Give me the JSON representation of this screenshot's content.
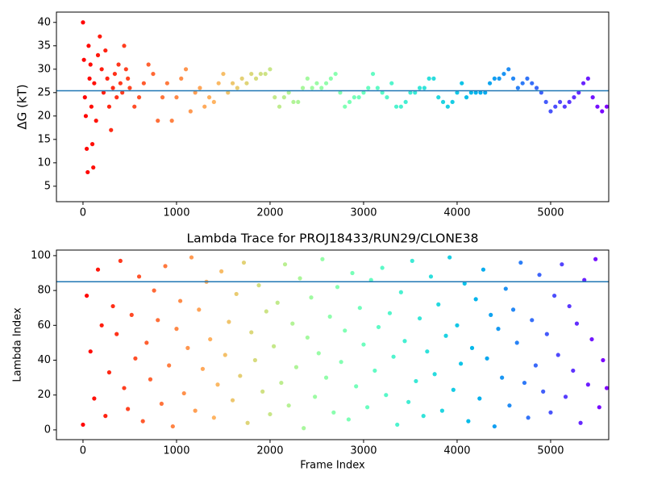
{
  "chart_data": [
    {
      "type": "scatter",
      "ylabel": "ΔG (kT)",
      "colormap": "rainbow_r",
      "hline": 25.4,
      "hline_color": "#1f77b4",
      "xlim": [
        -284,
        5621
      ],
      "ylim": [
        1.7,
        42.2
      ],
      "xticks": [
        0,
        1000,
        2000,
        3000,
        4000,
        5000
      ],
      "yticks": [
        5,
        10,
        15,
        20,
        25,
        30,
        35,
        40
      ],
      "x": [
        0,
        10,
        20,
        30,
        40,
        50,
        60,
        70,
        80,
        90,
        100,
        110,
        120,
        140,
        160,
        180,
        200,
        220,
        240,
        260,
        280,
        300,
        320,
        340,
        360,
        380,
        400,
        420,
        440,
        460,
        480,
        500,
        550,
        600,
        650,
        700,
        750,
        800,
        850,
        900,
        950,
        1000,
        1050,
        1100,
        1150,
        1200,
        1250,
        1300,
        1350,
        1400,
        1450,
        1500,
        1550,
        1600,
        1650,
        1700,
        1750,
        1800,
        1850,
        1900,
        1950,
        2000,
        2050,
        2100,
        2150,
        2200,
        2250,
        2300,
        2350,
        2400,
        2450,
        2500,
        2550,
        2600,
        2650,
        2700,
        2750,
        2800,
        2850,
        2900,
        2950,
        3000,
        3050,
        3100,
        3150,
        3200,
        3250,
        3300,
        3350,
        3400,
        3450,
        3500,
        3550,
        3600,
        3650,
        3700,
        3750,
        3800,
        3850,
        3900,
        3950,
        4000,
        4050,
        4100,
        4150,
        4200,
        4250,
        4300,
        4350,
        4400,
        4450,
        4500,
        4550,
        4600,
        4650,
        4700,
        4750,
        4800,
        4850,
        4900,
        4950,
        5000,
        5050,
        5100,
        5150,
        5200,
        5250,
        5300,
        5350,
        5400,
        5450,
        5500,
        5550,
        5600
      ],
      "values": [
        40,
        32,
        24,
        20,
        13,
        8,
        35,
        28,
        31,
        22,
        14,
        9,
        27,
        19,
        33,
        37,
        30,
        25,
        34,
        28,
        22,
        17,
        26,
        29,
        24,
        31,
        27,
        25,
        35,
        30,
        28,
        26,
        22,
        24,
        27,
        31,
        29,
        19,
        24,
        27,
        19,
        24,
        28,
        30,
        21,
        25,
        26,
        22,
        24,
        23,
        27,
        29,
        25,
        27,
        26,
        28,
        27,
        29,
        28,
        29,
        29,
        30,
        24,
        22,
        24,
        25,
        23,
        23,
        26,
        28,
        26,
        27,
        26,
        27,
        28,
        29,
        25,
        22,
        23,
        24,
        24,
        25,
        26,
        29,
        26,
        25,
        24,
        27,
        22,
        22,
        23,
        25,
        25,
        26,
        26,
        28,
        28,
        24,
        23,
        22,
        23,
        25,
        27,
        24,
        25,
        25,
        25,
        25,
        27,
        28,
        28,
        29,
        30,
        28,
        26,
        27,
        28,
        27,
        26,
        25,
        23,
        21,
        22,
        23,
        22,
        23,
        24,
        25,
        27,
        28,
        24,
        22,
        21,
        22
      ]
    },
    {
      "type": "scatter",
      "title": "Lambda Trace for PROJ18433/RUN29/CLONE38",
      "xlabel": "Frame Index",
      "ylabel": "Lambda Index",
      "colormap": "rainbow_r",
      "hline": 85,
      "hline_color": "#1f77b4",
      "xlim": [
        -284,
        5621
      ],
      "ylim": [
        -5.6,
        103.2
      ],
      "xticks": [
        0,
        1000,
        2000,
        3000,
        4000,
        5000
      ],
      "yticks": [
        0,
        20,
        40,
        60,
        80,
        100
      ],
      "x": [
        0,
        40,
        80,
        120,
        160,
        200,
        240,
        280,
        320,
        360,
        400,
        440,
        480,
        520,
        560,
        600,
        640,
        680,
        720,
        760,
        800,
        840,
        880,
        920,
        960,
        1000,
        1040,
        1080,
        1120,
        1160,
        1200,
        1240,
        1280,
        1320,
        1360,
        1400,
        1440,
        1480,
        1520,
        1560,
        1600,
        1640,
        1680,
        1720,
        1760,
        1800,
        1840,
        1880,
        1920,
        1960,
        2000,
        2040,
        2080,
        2120,
        2160,
        2200,
        2240,
        2280,
        2320,
        2360,
        2400,
        2440,
        2480,
        2520,
        2560,
        2600,
        2640,
        2680,
        2720,
        2760,
        2800,
        2840,
        2880,
        2920,
        2960,
        3000,
        3040,
        3080,
        3120,
        3160,
        3200,
        3240,
        3280,
        3320,
        3360,
        3400,
        3440,
        3480,
        3520,
        3560,
        3600,
        3640,
        3680,
        3720,
        3760,
        3800,
        3840,
        3880,
        3920,
        3960,
        4000,
        4040,
        4080,
        4120,
        4160,
        4200,
        4240,
        4280,
        4320,
        4360,
        4400,
        4440,
        4480,
        4520,
        4560,
        4600,
        4640,
        4680,
        4720,
        4760,
        4800,
        4840,
        4880,
        4920,
        4960,
        5000,
        5040,
        5080,
        5120,
        5160,
        5200,
        5240,
        5280,
        5320,
        5360,
        5400,
        5440,
        5480,
        5520,
        5560,
        5600
      ],
      "values": [
        3,
        77,
        45,
        18,
        92,
        60,
        8,
        33,
        71,
        55,
        97,
        24,
        12,
        66,
        41,
        88,
        5,
        50,
        29,
        80,
        63,
        15,
        94,
        37,
        2,
        58,
        74,
        21,
        47,
        99,
        11,
        69,
        35,
        85,
        52,
        7,
        26,
        91,
        43,
        62,
        17,
        78,
        31,
        96,
        4,
        56,
        40,
        83,
        22,
        68,
        9,
        48,
        73,
        27,
        95,
        14,
        61,
        36,
        87,
        1,
        53,
        76,
        19,
        44,
        98,
        30,
        65,
        10,
        82,
        39,
        57,
        6,
        90,
        25,
        70,
        49,
        13,
        86,
        34,
        59,
        93,
        20,
        67,
        42,
        3,
        79,
        51,
        16,
        97,
        28,
        64,
        8,
        45,
        88,
        32,
        72,
        11,
        54,
        99,
        23,
        60,
        38,
        84,
        5,
        47,
        75,
        18,
        92,
        41,
        66,
        2,
        58,
        30,
        81,
        14,
        69,
        50,
        96,
        27,
        7,
        63,
        37,
        89,
        22,
        55,
        10,
        77,
        43,
        95,
        19,
        71,
        34,
        61,
        4,
        86,
        26,
        52,
        98,
        13,
        40,
        24
      ]
    }
  ]
}
